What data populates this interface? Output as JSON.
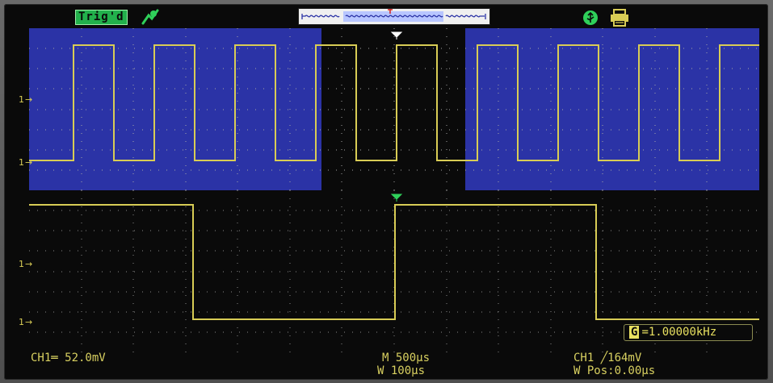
{
  "status_bar": {
    "trigger_state": "Trig'd"
  },
  "channel_1": {
    "scale": "CH1═ 52.0mV"
  },
  "timebase": {
    "main": "M 500μs",
    "window": "W 100μs"
  },
  "trigger": {
    "level": "CH1 ╱164mV",
    "window_position": "W Pos:0.00μs"
  },
  "measurement": {
    "badge": "G",
    "frequency": "=1.00000kHz"
  },
  "colors": {
    "waveform": "#d8cc55",
    "highlight_background": "#2b33a6",
    "screen_background": "#0a0a0a",
    "grid": "#8a8a8a",
    "status_text": "#d8d060",
    "trig_badge": "#22b14c"
  },
  "icons": [
    "trigger-status-icon",
    "memory-position-bar",
    "usb-icon",
    "printer-icon",
    "trigger-point-marker",
    "channel-marker-icon"
  ]
}
